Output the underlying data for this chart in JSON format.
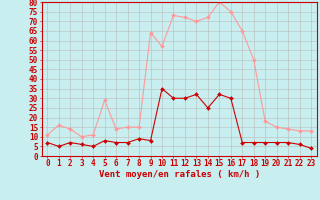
{
  "hours": [
    0,
    1,
    2,
    3,
    4,
    5,
    6,
    7,
    8,
    9,
    10,
    11,
    12,
    13,
    14,
    15,
    16,
    17,
    18,
    19,
    20,
    21,
    22,
    23
  ],
  "wind_avg": [
    7,
    5,
    7,
    6,
    5,
    8,
    7,
    7,
    9,
    8,
    35,
    30,
    30,
    32,
    25,
    32,
    30,
    7,
    7,
    7,
    7,
    7,
    6,
    4
  ],
  "wind_gust": [
    11,
    16,
    14,
    10,
    11,
    29,
    14,
    15,
    15,
    64,
    57,
    73,
    72,
    70,
    72,
    80,
    75,
    65,
    50,
    18,
    15,
    14,
    13,
    13
  ],
  "bg_color": "#c8eef0",
  "grid_color": "#bbbbbb",
  "line_avg_color": "#cc0000",
  "line_gust_color": "#ff9999",
  "xlabel": "Vent moyen/en rafales ( km/h )",
  "ylim": [
    0,
    80
  ],
  "yticks": [
    0,
    5,
    10,
    15,
    20,
    25,
    30,
    35,
    40,
    45,
    50,
    55,
    60,
    65,
    70,
    75,
    80
  ],
  "tick_fontsize": 5.5,
  "xlabel_fontsize": 6.5,
  "marker_size": 2.0,
  "line_width": 0.8
}
